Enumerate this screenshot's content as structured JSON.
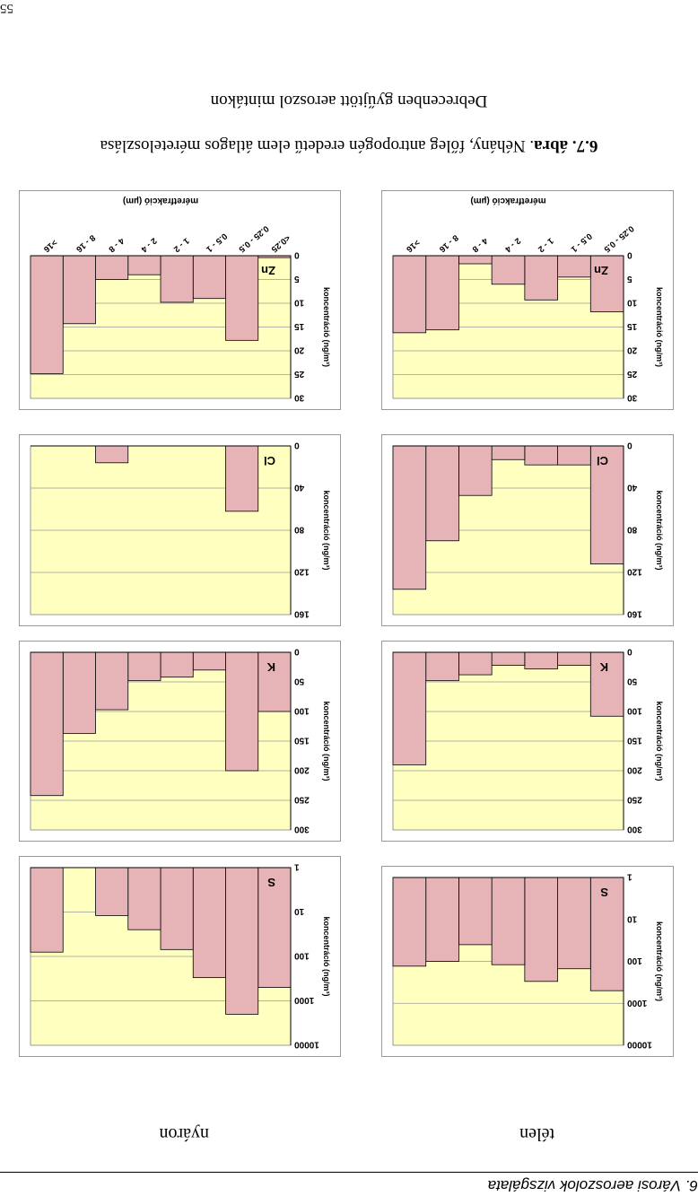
{
  "header": {
    "text": "6. Városi aeroszolok vizsgálata",
    "page_number": "55"
  },
  "seasons": {
    "summer": "nyáron",
    "winter": "télen"
  },
  "caption": {
    "label": "6.7. ábra",
    "line1": ". Néhány, főleg antropogén eredetű elem átlagos méreteloszlása",
    "line2": "Debrecenben gyűjtött aeroszol mintákon"
  },
  "colors": {
    "plot_bg": "#ffffc0",
    "bar_fill": "#e6b3b7",
    "bar_edge": "#000000",
    "grid": "#999999"
  },
  "chart_data": [
    {
      "type": "bar",
      "season": "nyáron",
      "element": "S",
      "scale": "log",
      "ylim": [
        1,
        10000
      ],
      "yticks": [
        "1",
        "10",
        "100",
        "1000",
        "10000"
      ],
      "ylabel": "koncentráció (ng/m³)",
      "values": [
        500,
        2000,
        300,
        70,
        25,
        12,
        null,
        80
      ]
    },
    {
      "type": "bar",
      "season": "nyáron",
      "element": "K",
      "scale": "linear",
      "ylim": [
        0,
        300
      ],
      "yticks": [
        "0",
        "50",
        "100",
        "150",
        "200",
        "250",
        "300"
      ],
      "ylabel": "koncentráció (ng/m³)",
      "values": [
        100,
        200,
        30,
        42,
        48,
        97,
        137,
        242
      ]
    },
    {
      "type": "bar",
      "season": "nyáron",
      "element": "Cl",
      "scale": "linear",
      "ylim": [
        0,
        160
      ],
      "yticks": [
        "0",
        "40",
        "80",
        "120",
        "160"
      ],
      "ylabel": "koncentráció (ng/m³)",
      "values": [
        0,
        62,
        0,
        0,
        0,
        16,
        0,
        0
      ]
    },
    {
      "type": "bar",
      "season": "nyáron",
      "element": "Zn",
      "scale": "linear",
      "ylim": [
        0,
        30
      ],
      "yticks": [
        "0",
        "5",
        "10",
        "15",
        "20",
        "25",
        "30"
      ],
      "ylabel": "koncentráció (ng/m³)",
      "xlabel": "méretfrakció (µm)",
      "categories": [
        "<0.25",
        "0.25 - 0.5",
        "0.5 - 1",
        "1 - 2",
        "2 - 4",
        "4 - 8",
        "8 - 16",
        ">16"
      ],
      "values": [
        0.4,
        17.8,
        9.0,
        9.8,
        4.0,
        5.0,
        14.3,
        24.8
      ]
    },
    {
      "type": "bar",
      "season": "télen",
      "element": "S",
      "scale": "log",
      "ylim": [
        1,
        10000
      ],
      "yticks": [
        "1",
        "10",
        "100",
        "1000",
        "10000"
      ],
      "ylabel": "koncentráció (ng/m³)",
      "values": [
        500,
        150,
        300,
        120,
        40,
        100,
        130
      ]
    },
    {
      "type": "bar",
      "season": "télen",
      "element": "K",
      "scale": "linear",
      "ylim": [
        0,
        300
      ],
      "yticks": [
        "0",
        "50",
        "100",
        "150",
        "200",
        "250",
        "300"
      ],
      "ylabel": "koncentráció (ng/m³)",
      "values": [
        108,
        22,
        28,
        22,
        38,
        48,
        190
      ]
    },
    {
      "type": "bar",
      "season": "télen",
      "element": "Cl",
      "scale": "linear",
      "ylim": [
        0,
        160
      ],
      "yticks": [
        "0",
        "40",
        "80",
        "120",
        "160"
      ],
      "ylabel": "koncentráció (ng/m³)",
      "values": [
        112,
        18,
        18,
        13,
        47,
        90,
        136
      ]
    },
    {
      "type": "bar",
      "season": "télen",
      "element": "Zn",
      "scale": "linear",
      "ylim": [
        0,
        30
      ],
      "yticks": [
        "0",
        "5",
        "10",
        "15",
        "20",
        "25",
        "30"
      ],
      "ylabel": "koncentráció (ng/m³)",
      "xlabel": "méretfrakció (µm)",
      "categories": [
        "0.25 - 0.5",
        "0.5 - 1",
        "1 - 2",
        "2 - 4",
        "4 - 8",
        "8 - 16",
        ">16"
      ],
      "values": [
        11.8,
        4.5,
        9.3,
        6.0,
        1.7,
        15.6,
        16.2
      ]
    }
  ]
}
